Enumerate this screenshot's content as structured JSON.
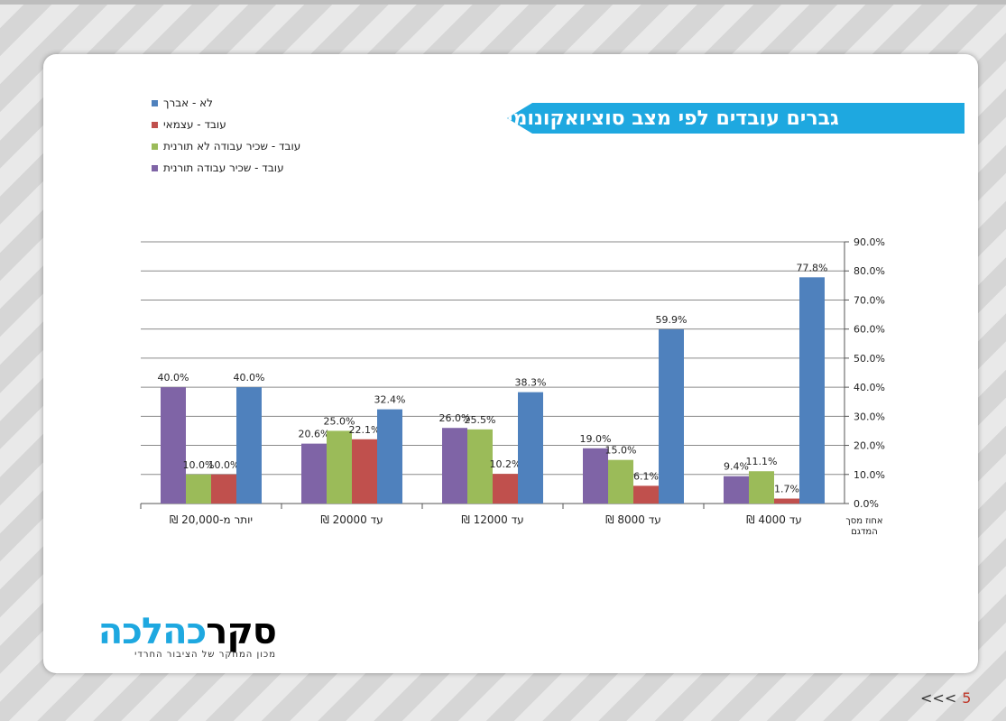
{
  "slide": {
    "title": "גברים עובדים לפי מצב סוציואקונומי",
    "page_number": "5",
    "page_arrows": "<<<"
  },
  "logo": {
    "main_dark": "סקר",
    "main_light": "כהלכה",
    "tagline": "מכון המחקר של הציבור החרדי"
  },
  "chart_data": {
    "type": "bar",
    "title": "",
    "xlabel": "אחוז מסך המדגם",
    "ylabel": "",
    "ylim": [
      0,
      90
    ],
    "yticks": [
      "0.0%",
      "10.0%",
      "20.0%",
      "30.0%",
      "40.0%",
      "50.0%",
      "60.0%",
      "70.0%",
      "80.0%",
      "90.0%"
    ],
    "grid": true,
    "legend_position": "top-left",
    "categories": [
      "יותר  מ-20,000 ₪",
      "עד 20000 ₪",
      "עד 12000 ₪",
      "עד 8000 ₪",
      "עד 4000 ₪"
    ],
    "series": [
      {
        "name": "עובד - שכיר עבודה תורנית",
        "color": "#7f64a6",
        "values": [
          40.0,
          20.6,
          26.0,
          19.0,
          9.4
        ],
        "labels": [
          "40.0%",
          "20.6%",
          "26.0%",
          "19.0%",
          "9.4%"
        ]
      },
      {
        "name": "עובד - שכיר עבודה לא תורנית",
        "color": "#9bbb59",
        "values": [
          10.0,
          25.0,
          25.5,
          15.0,
          11.1
        ],
        "labels": [
          "10.0%",
          "25.0%",
          "25.5%",
          "15.0%",
          "11.1%"
        ]
      },
      {
        "name": "עובד - עצמאי",
        "color": "#c0504d",
        "values": [
          10.0,
          22.1,
          10.2,
          6.1,
          1.7
        ],
        "labels": [
          "10.0%",
          "22.1%",
          "10.2%",
          "6.1%",
          "1.7%"
        ]
      },
      {
        "name": "לא - אברך",
        "color": "#4f81bd",
        "values": [
          40.0,
          32.4,
          38.3,
          59.9,
          77.8
        ],
        "labels": [
          "40.0%",
          "32.4%",
          "38.3%",
          "59.9%",
          "77.8%"
        ]
      }
    ],
    "legend_order": [
      "לא - אברך",
      "עובד - עצמאי",
      "עובד - שכיר עבודה לא תורנית",
      "עובד - שכיר עבודה תורנית"
    ]
  }
}
